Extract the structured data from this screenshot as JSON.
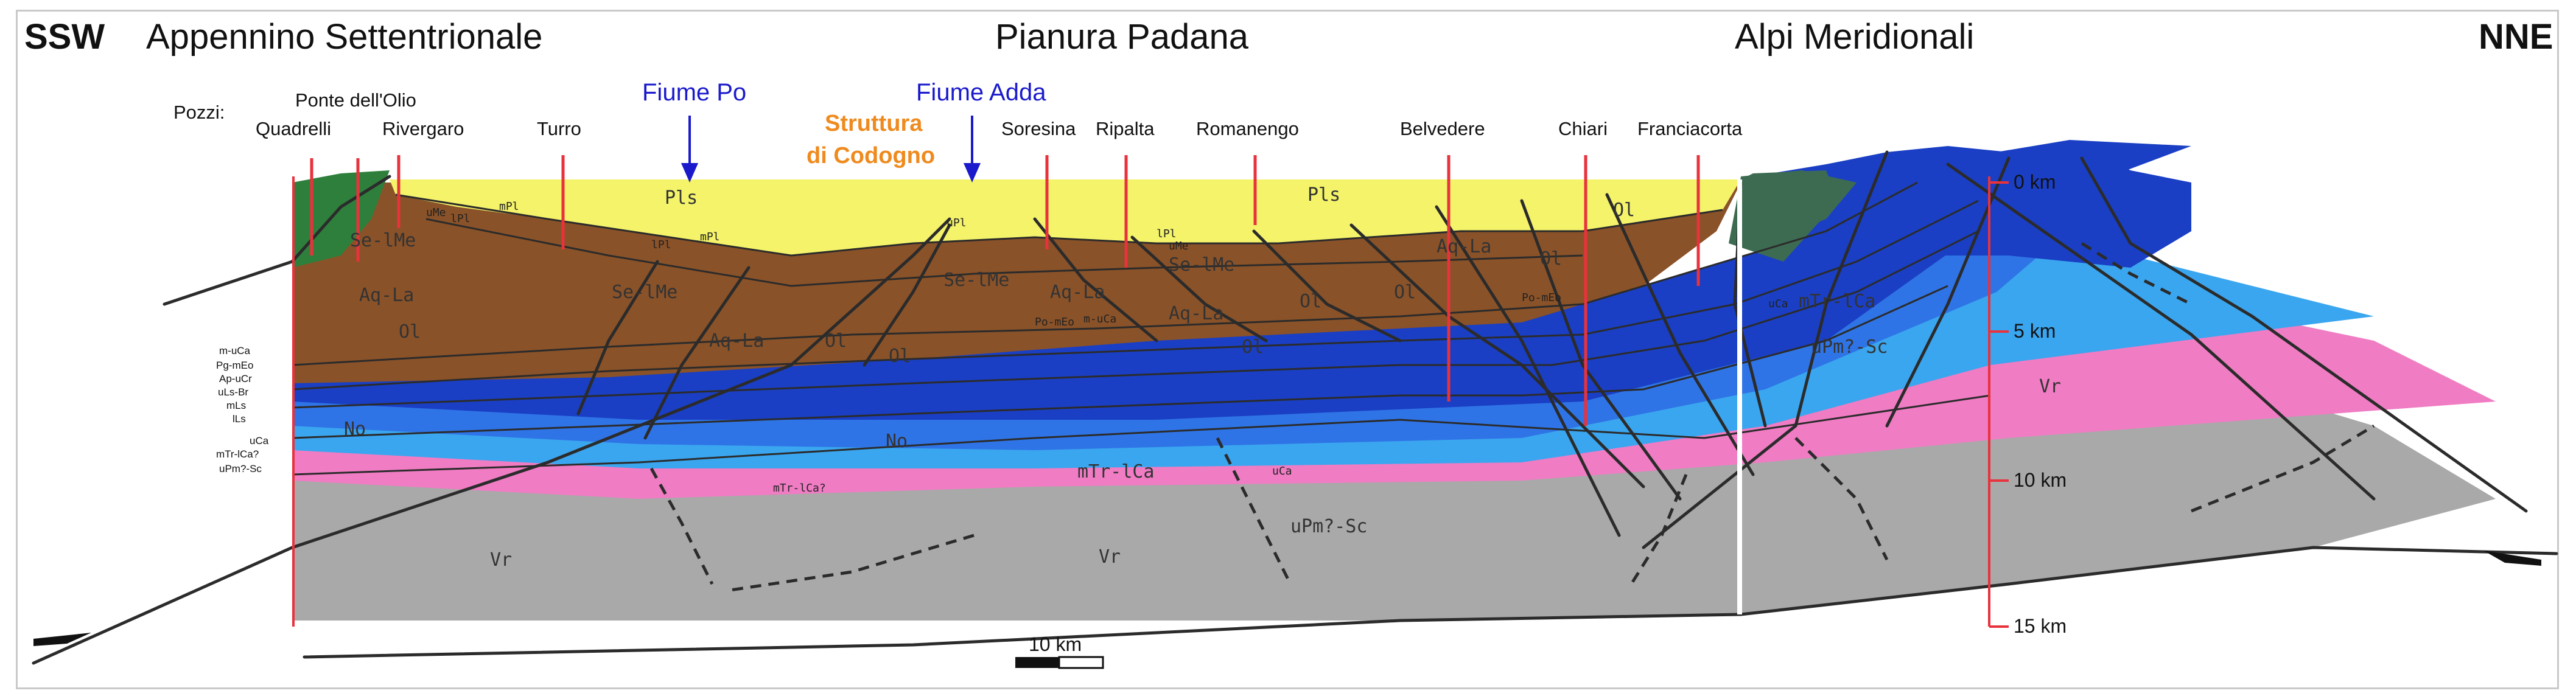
{
  "directions": {
    "left": "SSW",
    "right": "NNE"
  },
  "regions": {
    "left": "Appennino Settentrionale",
    "center": "Pianura Padana",
    "right": "Alpi Meridionali"
  },
  "wells_label": "Pozzi:",
  "wells": [
    {
      "name": "Quadrelli"
    },
    {
      "name": "Ponte dell'Olio"
    },
    {
      "name": "Rivergaro"
    },
    {
      "name": "Turro"
    },
    {
      "name": "Soresina"
    },
    {
      "name": "Ripalta"
    },
    {
      "name": "Romanengo"
    },
    {
      "name": "Belvedere"
    },
    {
      "name": "Chiari"
    },
    {
      "name": "Franciacorta"
    }
  ],
  "rivers": [
    {
      "name": "Fiume Po"
    },
    {
      "name": "Fiume Adda"
    }
  ],
  "structure": {
    "line1": "Struttura",
    "line2": "di Codogno"
  },
  "depth_scale": [
    "0 km",
    "5 km",
    "10 km",
    "15 km"
  ],
  "scale_bar": {
    "label": "10 km"
  },
  "units": {
    "pls": "Pls",
    "seime": "Se-lMe",
    "aqla": "Aq-La",
    "ol": "Ol",
    "no": "No",
    "mtrlca": "mTr-lCa",
    "vr": "Vr",
    "upmsc": "uPm?-Sc",
    "mtrlca2": "mTr-lCa?",
    "uca": "uCa",
    "upmsc2": "uPm?-Sc",
    "ipl": "lPl",
    "mpl": "mPl",
    "upl": "uPl",
    "ume": "uMe",
    "pome": "Po-mEo",
    "muca": "m-uCa",
    "pome2": "Po-mEo"
  },
  "left_legend": [
    "m-uCa",
    "Pg-mEo",
    "Ap-uCr",
    "uLs-Br",
    "mLs",
    "lLs",
    "uCa",
    "mTr-lCa?",
    "uPm?-Sc"
  ],
  "colors": {
    "pliocene": "#f4f36a",
    "miocene": "#8a5228",
    "oligocene": "#8a5228",
    "dark_blue": "#1a3fc4",
    "mid_blue": "#2f74e6",
    "light_blue": "#3aa6ef",
    "pink": "#f07cc4",
    "basement": "#a9a9a9",
    "apennine_green": "#2e7f3c",
    "alps_green": "#3d6b52",
    "well": "#e8323c",
    "river": "#1a1acc",
    "structure": "#ef8a1e"
  }
}
